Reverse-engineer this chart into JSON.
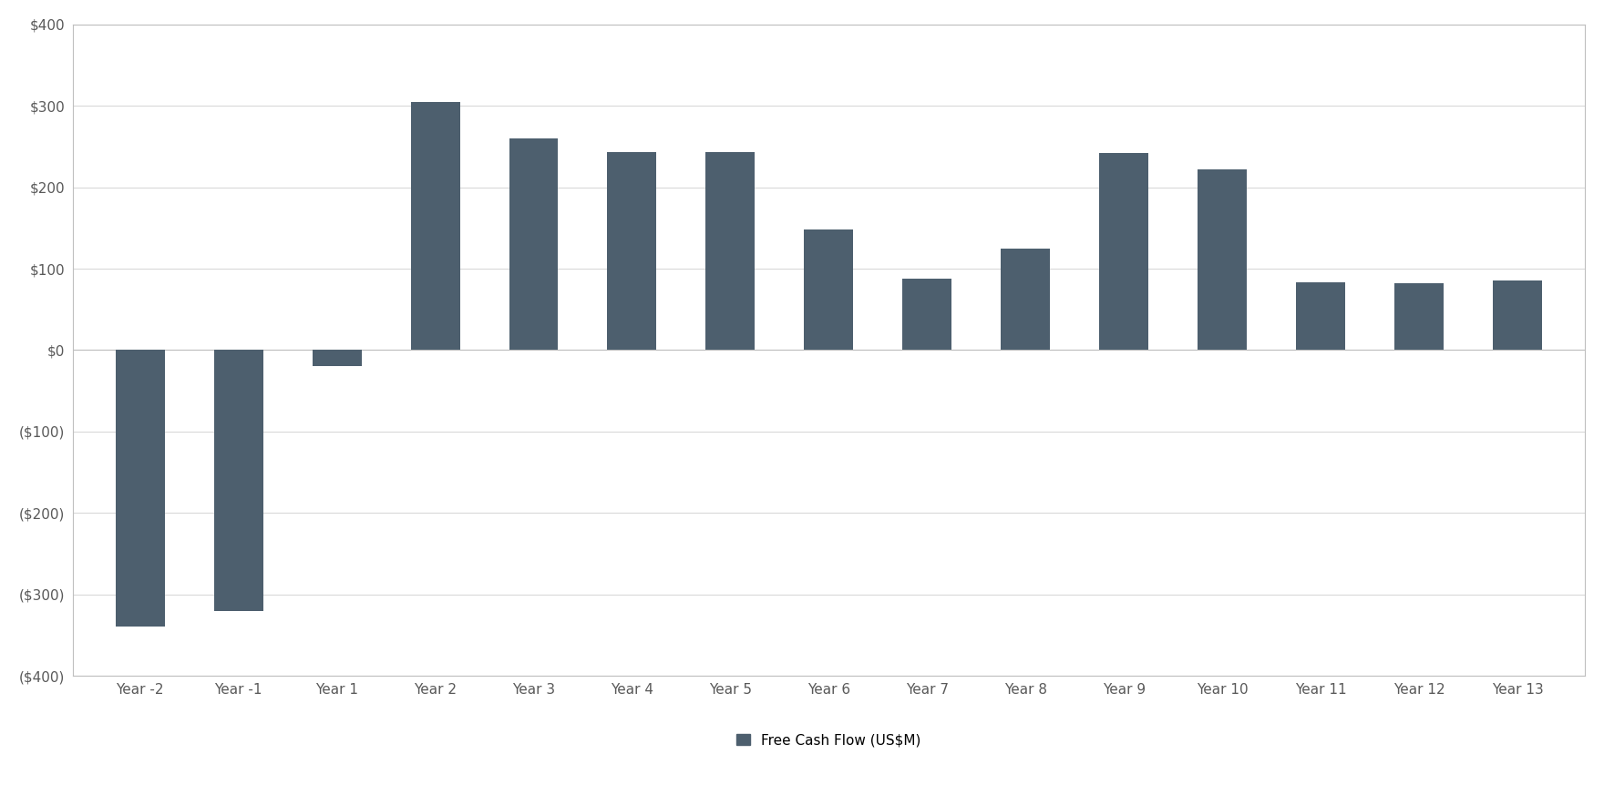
{
  "categories": [
    "Year -2",
    "Year -1",
    "Year 1",
    "Year 2",
    "Year 3",
    "Year 4",
    "Year 5",
    "Year 6",
    "Year 7",
    "Year 8",
    "Year 9",
    "Year 10",
    "Year 11",
    "Year 12",
    "Year 13"
  ],
  "values": [
    -340,
    -320,
    -20,
    305,
    260,
    243,
    243,
    148,
    88,
    125,
    242,
    222,
    83,
    82,
    85
  ],
  "bar_color": "#4d5f6e",
  "ylim": [
    -400,
    400
  ],
  "yticks": [
    -400,
    -300,
    -200,
    -100,
    0,
    100,
    200,
    300,
    400
  ],
  "ytick_labels": [
    "($400)",
    "($300)",
    "($200)",
    "($100)",
    "$0",
    "$100",
    "$200",
    "$300",
    "$400"
  ],
  "legend_label": "Free Cash Flow (US$M)",
  "background_color": "#ffffff",
  "grid_color": "#d9d9d9",
  "border_color": "#bfbfbf",
  "tick_fontsize": 11,
  "legend_fontsize": 11,
  "bar_width": 0.5
}
